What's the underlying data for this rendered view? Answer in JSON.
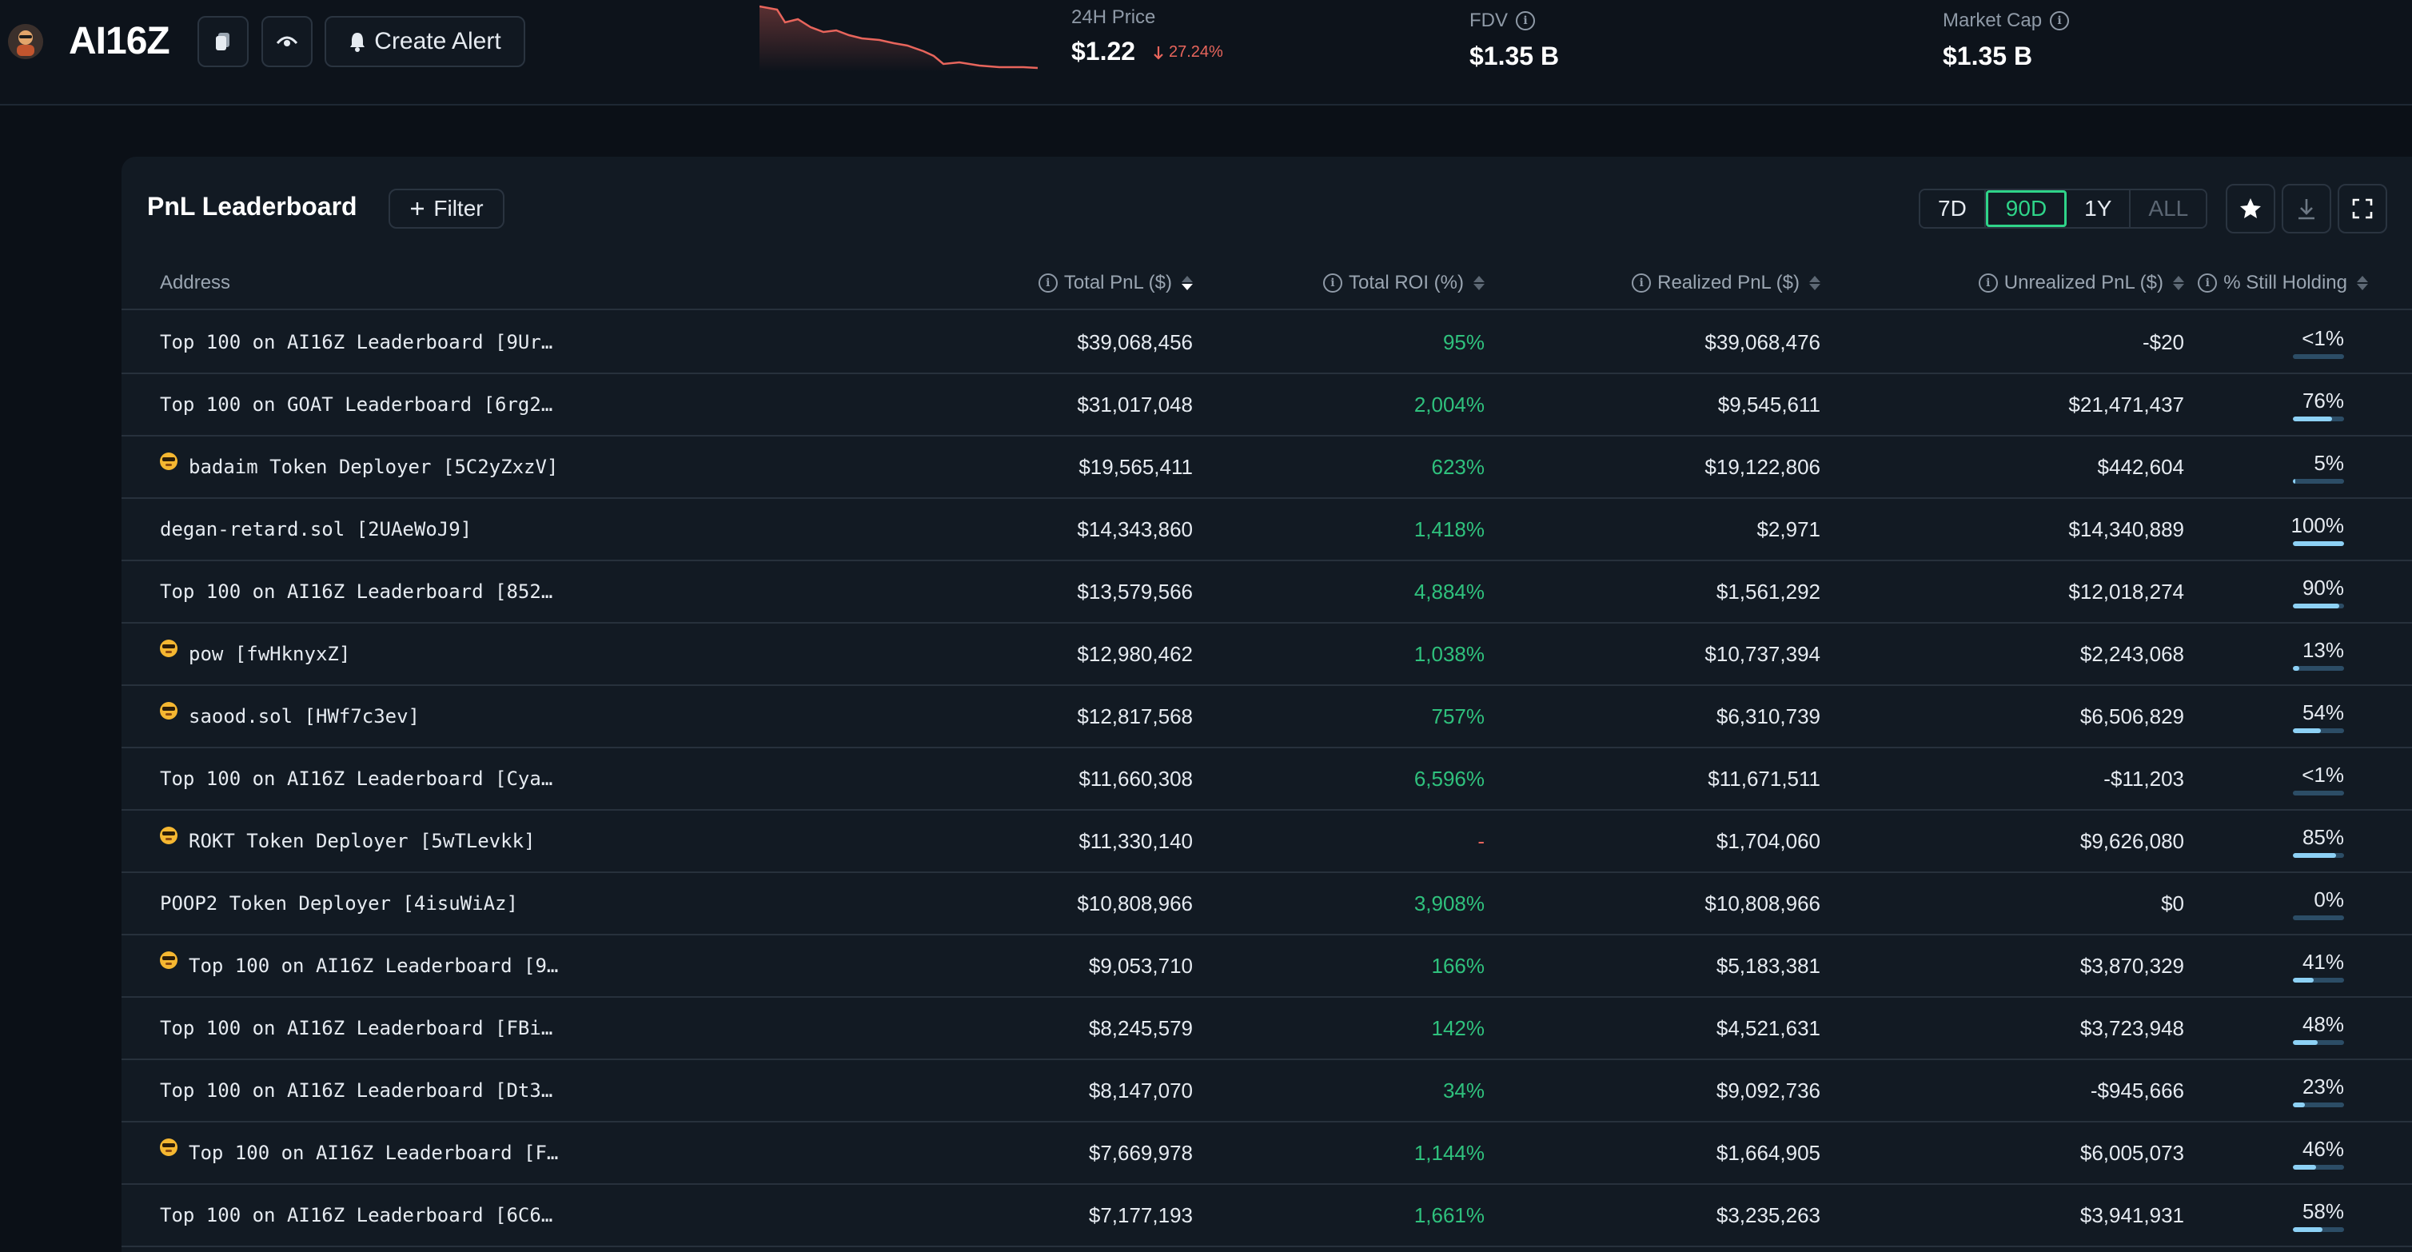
{
  "header": {
    "token_name": "AI16Z",
    "create_alert_label": "Create Alert",
    "price_label": "24H Price",
    "price_value": "$1.22",
    "price_change": "27.24%",
    "fdv_label": "FDV",
    "fdv_value": "$1.35 B",
    "market_cap_label": "Market Cap",
    "market_cap_value": "$1.35 B",
    "sparkline_color": "#e8655c",
    "sparkline_trend": "down"
  },
  "panel": {
    "title": "PnL Leaderboard",
    "filter_label": "Filter",
    "ranges": [
      "7D",
      "90D",
      "1Y",
      "ALL"
    ],
    "active_range": "90D"
  },
  "table": {
    "columns": {
      "address": "Address",
      "total_pnl": "Total PnL ($)",
      "total_roi": "Total ROI (%)",
      "realized_pnl": "Realized PnL ($)",
      "unrealized_pnl": "Unrealized PnL ($)",
      "still_holding": "% Still Holding"
    },
    "sorted_by": "Total PnL ($)",
    "sort_direction": "descending",
    "rows": [
      {
        "address": "Top 100 on AI16Z Leaderboard [9Ur…",
        "emoji": false,
        "total_pnl": "$39,068,456",
        "roi": "95%",
        "realized": "$39,068,476",
        "unrealized": "-$20",
        "holding": "<1%",
        "holding_fraction": 0.0
      },
      {
        "address": "Top 100 on GOAT Leaderboard [6rg2…",
        "emoji": false,
        "total_pnl": "$31,017,048",
        "roi": "2,004%",
        "realized": "$9,545,611",
        "unrealized": "$21,471,437",
        "holding": "76%",
        "holding_fraction": 0.76
      },
      {
        "address": "badaim Token Deployer [5C2yZxzV]",
        "emoji": true,
        "total_pnl": "$19,565,411",
        "roi": "623%",
        "realized": "$19,122,806",
        "unrealized": "$442,604",
        "holding": "5%",
        "holding_fraction": 0.05
      },
      {
        "address": "degan-retard.sol [2UAeWoJ9]",
        "emoji": false,
        "total_pnl": "$14,343,860",
        "roi": "1,418%",
        "realized": "$2,971",
        "unrealized": "$14,340,889",
        "holding": "100%",
        "holding_fraction": 1.0
      },
      {
        "address": "Top 100 on AI16Z Leaderboard [852…",
        "emoji": false,
        "total_pnl": "$13,579,566",
        "roi": "4,884%",
        "realized": "$1,561,292",
        "unrealized": "$12,018,274",
        "holding": "90%",
        "holding_fraction": 0.9
      },
      {
        "address": "pow [fwHknyxZ]",
        "emoji": true,
        "total_pnl": "$12,980,462",
        "roi": "1,038%",
        "realized": "$10,737,394",
        "unrealized": "$2,243,068",
        "holding": "13%",
        "holding_fraction": 0.13
      },
      {
        "address": "saood.sol [HWf7c3ev]",
        "emoji": true,
        "total_pnl": "$12,817,568",
        "roi": "757%",
        "realized": "$6,310,739",
        "unrealized": "$6,506,829",
        "holding": "54%",
        "holding_fraction": 0.54
      },
      {
        "address": "Top 100 on AI16Z Leaderboard [Cya…",
        "emoji": false,
        "total_pnl": "$11,660,308",
        "roi": "6,596%",
        "realized": "$11,671,511",
        "unrealized": "-$11,203",
        "holding": "<1%",
        "holding_fraction": 0.0
      },
      {
        "address": "ROKT Token Deployer [5wTLevkk]",
        "emoji": true,
        "total_pnl": "$11,330,140",
        "roi": "-",
        "realized": "$1,704,060",
        "unrealized": "$9,626,080",
        "holding": "85%",
        "holding_fraction": 0.85
      },
      {
        "address": "POOP2 Token Deployer [4isuWiAz]",
        "emoji": false,
        "total_pnl": "$10,808,966",
        "roi": "3,908%",
        "realized": "$10,808,966",
        "unrealized": "$0",
        "holding": "0%",
        "holding_fraction": 0.0
      },
      {
        "address": "Top 100 on AI16Z Leaderboard [9…",
        "emoji": true,
        "total_pnl": "$9,053,710",
        "roi": "166%",
        "realized": "$5,183,381",
        "unrealized": "$3,870,329",
        "holding": "41%",
        "holding_fraction": 0.41
      },
      {
        "address": "Top 100 on AI16Z Leaderboard [FBi…",
        "emoji": false,
        "total_pnl": "$8,245,579",
        "roi": "142%",
        "realized": "$4,521,631",
        "unrealized": "$3,723,948",
        "holding": "48%",
        "holding_fraction": 0.48
      },
      {
        "address": "Top 100 on AI16Z Leaderboard [Dt3…",
        "emoji": false,
        "total_pnl": "$8,147,070",
        "roi": "34%",
        "realized": "$9,092,736",
        "unrealized": "-$945,666",
        "holding": "23%",
        "holding_fraction": 0.23
      },
      {
        "address": "Top 100 on AI16Z Leaderboard [F…",
        "emoji": true,
        "total_pnl": "$7,669,978",
        "roi": "1,144%",
        "realized": "$1,664,905",
        "unrealized": "$6,005,073",
        "holding": "46%",
        "holding_fraction": 0.46
      },
      {
        "address": "Top 100 on AI16Z Leaderboard [6C6…",
        "emoji": false,
        "total_pnl": "$7,177,193",
        "roi": "1,661%",
        "realized": "$3,235,263",
        "unrealized": "$3,941,931",
        "holding": "58%",
        "holding_fraction": 0.58
      }
    ]
  },
  "icons": {
    "token_logo": "token-avatar-icon",
    "copy": "copy-icon",
    "watch": "eye-icon",
    "alert": "bell-icon",
    "info": "info-icon",
    "price_down": "arrow-down-icon",
    "filter_plus": "plus-icon",
    "favorite": "star-icon",
    "download": "download-icon",
    "fullscreen": "fullscreen-icon"
  },
  "colors": {
    "accent_green": "#2fd489",
    "positive": "#2fc17d",
    "negative": "#e8655c",
    "holding_bar": "#8dd1f5"
  }
}
